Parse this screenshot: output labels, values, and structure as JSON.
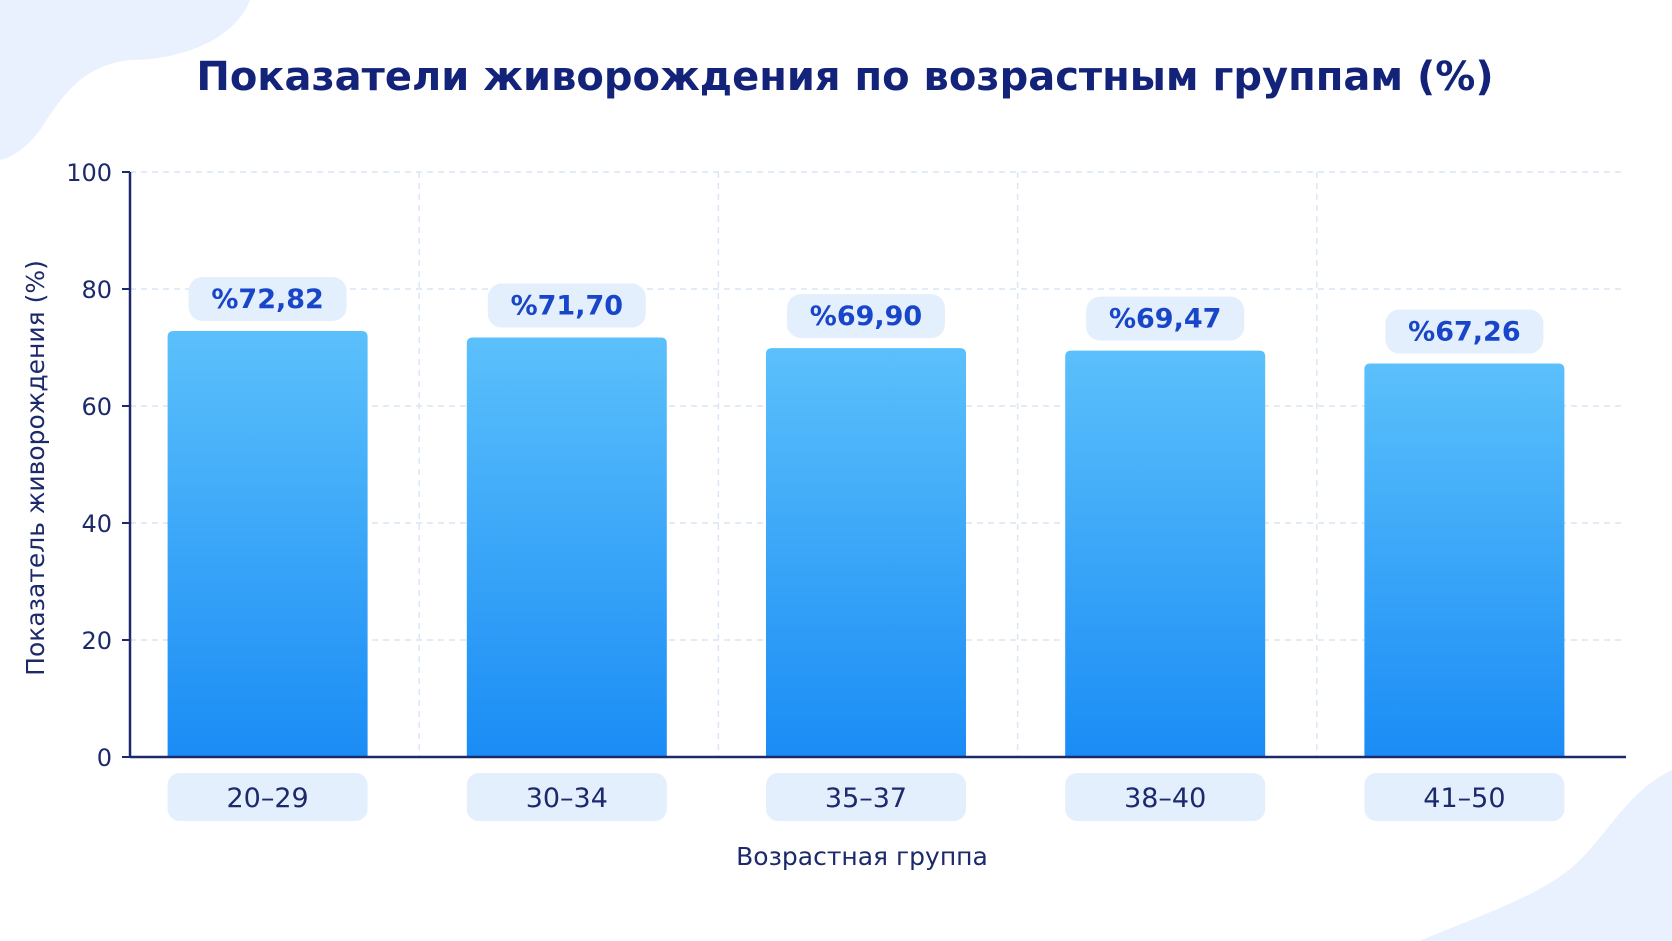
{
  "colors": {
    "title": "#14237a",
    "axis_text": "#1c2a6b",
    "bar_top": "#5bc0fb",
    "bar_bottom": "#1a8cf5",
    "pill_bg": "#e3effd",
    "value_text": "#1946c9",
    "grid": "#d9e6f5",
    "blob": "#e8f1fd"
  },
  "chart_data": {
    "type": "bar",
    "title": "Показатели живорождения по возрастным группам (%)",
    "xlabel": "Возрастная группа",
    "ylabel": "Показатель живорождения (%)",
    "ylim": [
      0,
      100
    ],
    "yticks": [
      "0",
      "20",
      "40",
      "60",
      "80",
      "100"
    ],
    "grid": true,
    "categories": [
      "20–29",
      "30–34",
      "35–37",
      "38–40",
      "41–50"
    ],
    "values": [
      72.82,
      71.7,
      69.9,
      69.47,
      67.26
    ],
    "value_labels": [
      "%72,82",
      "%71,70",
      "%69,90",
      "%69,47",
      "%67,26"
    ]
  }
}
